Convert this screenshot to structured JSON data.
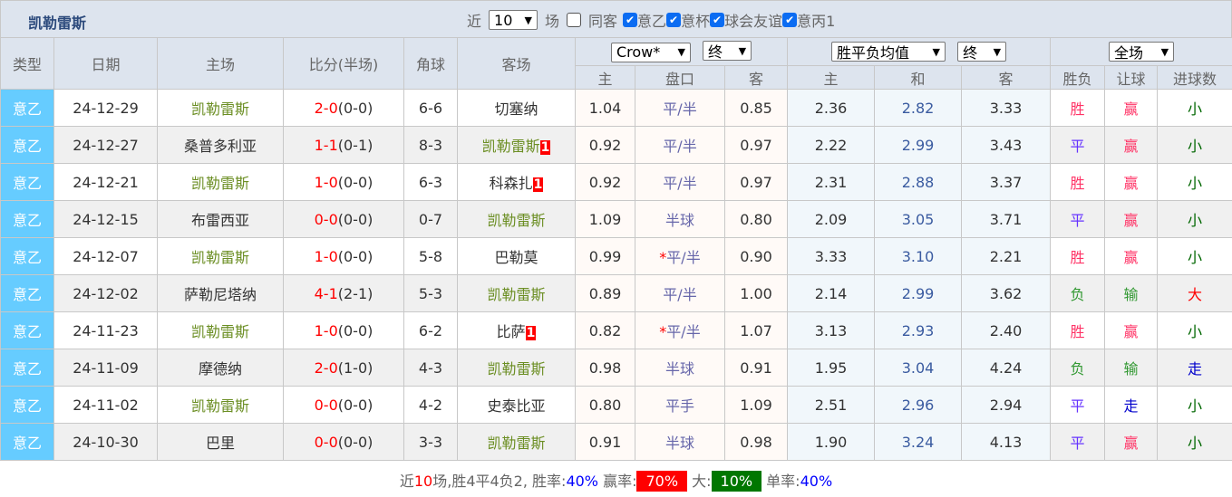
{
  "header": {
    "title": "凯勒雷斯",
    "recent_prefix": "近",
    "recent_count": "10",
    "recent_suffix": "场",
    "same_label": "同客",
    "same_checked": false,
    "competitions": [
      {
        "label": "意乙",
        "checked": true
      },
      {
        "label": "意杯",
        "checked": true
      },
      {
        "label": "球会友谊",
        "checked": true
      },
      {
        "label": "意丙1",
        "checked": true
      }
    ]
  },
  "columns": {
    "type": "类型",
    "date": "日期",
    "home": "主场",
    "score": "比分(半场)",
    "corner": "角球",
    "away": "客场",
    "bookmaker": "Crow*",
    "odds_phase": "终",
    "avg": "胜平负均值",
    "avg_phase": "终",
    "period": "全场",
    "sub": [
      "主",
      "盘口",
      "客",
      "主",
      "和",
      "客",
      "胜负",
      "让球",
      "进球数"
    ]
  },
  "colors": {
    "type_bg": "#66ccff",
    "win": "#ff3366",
    "lose": "#339933",
    "draw": "#6633ff",
    "small": "#006600",
    "big": "#ff0000"
  },
  "rows": [
    {
      "type": "意乙",
      "date": "24-12-29",
      "home": "凯勒雷斯",
      "home_kl": true,
      "ft": "2-0",
      "ht": "(0-0)",
      "corner": "6-6",
      "away": "切塞纳",
      "away_kl": false,
      "away_tag": "",
      "ah_home": "1.04",
      "star": "",
      "line": "平/半",
      "ah_away": "0.85",
      "w": "2.36",
      "d": "2.82",
      "l": "3.33",
      "res": "胜",
      "res_c": "win",
      "hc": "赢",
      "hc_c": "win",
      "goals": "小",
      "goals_c": "small"
    },
    {
      "type": "意乙",
      "date": "24-12-27",
      "home": "桑普多利亚",
      "home_kl": false,
      "ft": "1-1",
      "ht": "(0-1)",
      "corner": "8-3",
      "away": "凯勒雷斯",
      "away_kl": true,
      "away_tag": "1",
      "ah_home": "0.92",
      "star": "",
      "line": "平/半",
      "ah_away": "0.97",
      "w": "2.22",
      "d": "2.99",
      "l": "3.43",
      "res": "平",
      "res_c": "draw",
      "hc": "赢",
      "hc_c": "win",
      "goals": "小",
      "goals_c": "small"
    },
    {
      "type": "意乙",
      "date": "24-12-21",
      "home": "凯勒雷斯",
      "home_kl": true,
      "ft": "1-0",
      "ht": "(0-0)",
      "corner": "6-3",
      "away": "科森扎",
      "away_kl": false,
      "away_tag": "1",
      "ah_home": "0.92",
      "star": "",
      "line": "平/半",
      "ah_away": "0.97",
      "w": "2.31",
      "d": "2.88",
      "l": "3.37",
      "res": "胜",
      "res_c": "win",
      "hc": "赢",
      "hc_c": "win",
      "goals": "小",
      "goals_c": "small"
    },
    {
      "type": "意乙",
      "date": "24-12-15",
      "home": "布雷西亚",
      "home_kl": false,
      "ft": "0-0",
      "ht": "(0-0)",
      "corner": "0-7",
      "away": "凯勒雷斯",
      "away_kl": true,
      "away_tag": "",
      "ah_home": "1.09",
      "star": "",
      "line": "半球",
      "ah_away": "0.80",
      "w": "2.09",
      "d": "3.05",
      "l": "3.71",
      "res": "平",
      "res_c": "draw",
      "hc": "赢",
      "hc_c": "win",
      "goals": "小",
      "goals_c": "small"
    },
    {
      "type": "意乙",
      "date": "24-12-07",
      "home": "凯勒雷斯",
      "home_kl": true,
      "ft": "1-0",
      "ht": "(0-0)",
      "corner": "5-8",
      "away": "巴勒莫",
      "away_kl": false,
      "away_tag": "",
      "ah_home": "0.99",
      "star": "*",
      "line": "平/半",
      "ah_away": "0.90",
      "w": "3.33",
      "d": "3.10",
      "l": "2.21",
      "res": "胜",
      "res_c": "win",
      "hc": "赢",
      "hc_c": "win",
      "goals": "小",
      "goals_c": "small"
    },
    {
      "type": "意乙",
      "date": "24-12-02",
      "home": "萨勒尼塔纳",
      "home_kl": false,
      "ft": "4-1",
      "ht": "(2-1)",
      "corner": "5-3",
      "away": "凯勒雷斯",
      "away_kl": true,
      "away_tag": "",
      "ah_home": "0.89",
      "star": "",
      "line": "平/半",
      "ah_away": "1.00",
      "w": "2.14",
      "d": "2.99",
      "l": "3.62",
      "res": "负",
      "res_c": "lose",
      "hc": "输",
      "hc_c": "lose",
      "goals": "大",
      "goals_c": "big"
    },
    {
      "type": "意乙",
      "date": "24-11-23",
      "home": "凯勒雷斯",
      "home_kl": true,
      "ft": "1-0",
      "ht": "(0-0)",
      "corner": "6-2",
      "away": "比萨",
      "away_kl": false,
      "away_tag": "1",
      "ah_home": "0.82",
      "star": "*",
      "line": "平/半",
      "ah_away": "1.07",
      "w": "3.13",
      "d": "2.93",
      "l": "2.40",
      "res": "胜",
      "res_c": "win",
      "hc": "赢",
      "hc_c": "win",
      "goals": "小",
      "goals_c": "small"
    },
    {
      "type": "意乙",
      "date": "24-11-09",
      "home": "摩德纳",
      "home_kl": false,
      "ft": "2-0",
      "ht": "(1-0)",
      "corner": "4-3",
      "away": "凯勒雷斯",
      "away_kl": true,
      "away_tag": "",
      "ah_home": "0.98",
      "star": "",
      "line": "半球",
      "ah_away": "0.91",
      "w": "1.95",
      "d": "3.04",
      "l": "4.24",
      "res": "负",
      "res_c": "lose",
      "hc": "输",
      "hc_c": "lose",
      "goals": "走",
      "goals_c": "push"
    },
    {
      "type": "意乙",
      "date": "24-11-02",
      "home": "凯勒雷斯",
      "home_kl": true,
      "ft": "0-0",
      "ht": "(0-0)",
      "corner": "4-2",
      "away": "史泰比亚",
      "away_kl": false,
      "away_tag": "",
      "ah_home": "0.80",
      "star": "",
      "line": "平手",
      "ah_away": "1.09",
      "w": "2.51",
      "d": "2.96",
      "l": "2.94",
      "res": "平",
      "res_c": "draw",
      "hc": "走",
      "hc_c": "push",
      "goals": "小",
      "goals_c": "small"
    },
    {
      "type": "意乙",
      "date": "24-10-30",
      "home": "巴里",
      "home_kl": false,
      "ft": "0-0",
      "ht": "(0-0)",
      "corner": "3-3",
      "away": "凯勒雷斯",
      "away_kl": true,
      "away_tag": "",
      "ah_home": "0.91",
      "star": "",
      "line": "半球",
      "ah_away": "0.98",
      "w": "1.90",
      "d": "3.24",
      "l": "4.13",
      "res": "平",
      "res_c": "draw",
      "hc": "赢",
      "hc_c": "win",
      "goals": "小",
      "goals_c": "small"
    }
  ],
  "summary": {
    "p1": "近",
    "n": "10",
    "p2": "场,胜4平4负2,",
    "wr_label": " 胜率:",
    "wr": "40%",
    "hr_label": " 赢率:",
    "hr": "70%",
    "big_label": " 大:",
    "big": "10%",
    "odd_label": " 单率:",
    "odd": "40%"
  }
}
